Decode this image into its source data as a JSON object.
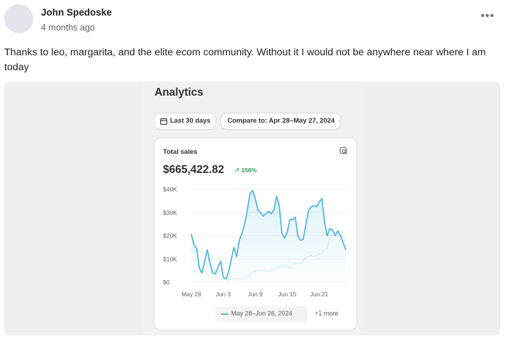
{
  "post": {
    "author": "John Spedoske",
    "timestamp": "4 months ago",
    "more_icon": "ellipsis-icon",
    "text": "Thanks to leo, margarita, and the elite ecom community. Without it I would not be anywhere near where I am today"
  },
  "analytics": {
    "title": "Analytics",
    "period_label": "Last 30 days",
    "compare_label": "Compare to: Apr 28–May 27, 2024",
    "card": {
      "title": "Total sales",
      "total": "$665,422.82",
      "change": "↗ 156%",
      "change_color": "#2f9a56"
    },
    "legend": {
      "label": "May 28–Jun 26, 2024",
      "more": "+1 more",
      "color": "#4ab5d9"
    }
  },
  "chart_data": {
    "type": "line",
    "title": "Total sales",
    "xlabel": "",
    "ylabel": "",
    "ylim": [
      0,
      40000
    ],
    "yticks": [
      0,
      10000,
      20000,
      30000,
      40000
    ],
    "ytick_labels": [
      "$0",
      "$10K",
      "$20K",
      "$30K",
      "$40K"
    ],
    "xtick_labels": [
      "May 28",
      "Jun 3",
      "Jun 9",
      "Jun 15",
      "Jun 21"
    ],
    "xtick_days": [
      0,
      6,
      12,
      18,
      24
    ],
    "grid": true,
    "series": [
      {
        "name": "May 28–Jun 26, 2024",
        "style": "solid",
        "color": "#4ab5d9",
        "x": [
          0,
          0.5,
          1,
          1.5,
          2,
          2.5,
          3,
          3.5,
          4,
          4.5,
          5,
          5.5,
          6,
          6.5,
          7,
          7.5,
          8,
          8.5,
          9,
          9.5,
          10,
          10.5,
          11,
          11.5,
          12,
          12.5,
          13,
          13.5,
          14,
          14.5,
          15,
          15.5,
          16,
          16.5,
          17,
          17.5,
          18,
          18.5,
          19,
          19.5,
          20,
          20.5,
          21,
          21.5,
          22,
          22.5,
          23,
          23.5,
          24,
          24.5,
          25,
          25.5,
          26,
          26.5,
          27,
          27.5,
          28,
          28.5,
          29
        ],
        "y": [
          20500,
          16000,
          14500,
          6000,
          4000,
          9000,
          14000,
          8000,
          4000,
          3500,
          6500,
          9000,
          2000,
          1500,
          4500,
          10000,
          15000,
          11000,
          18000,
          21000,
          25000,
          31000,
          38000,
          39500,
          36000,
          31000,
          30000,
          28500,
          29500,
          30500,
          29500,
          31000,
          37000,
          33000,
          21000,
          19000,
          21500,
          27000,
          27000,
          28000,
          20000,
          18000,
          18500,
          25000,
          31000,
          32500,
          33000,
          32500,
          34500,
          36000,
          26000,
          20000,
          23000,
          22500,
          20000,
          22000,
          20000,
          17000,
          14000
        ]
      },
      {
        "name": "Apr 28–May 27, 2024",
        "style": "dotted",
        "color": "#9fd7ea",
        "x": [
          0,
          0.5,
          1,
          1.5,
          2,
          2.5,
          3,
          3.5,
          4,
          4.5,
          5,
          5.5,
          6,
          6.5,
          7,
          7.5,
          8,
          8.5,
          9,
          9.5,
          10,
          10.5,
          11,
          11.5,
          12,
          12.5,
          13,
          13.5,
          14,
          14.5,
          15,
          15.5,
          16,
          16.5,
          17,
          17.5,
          18,
          18.5,
          19,
          19.5,
          20,
          20.5,
          21,
          21.5,
          22,
          22.5,
          23,
          23.5,
          24,
          24.5,
          25,
          25.5,
          26,
          26.5,
          27,
          27.5,
          28,
          28.5,
          29
        ],
        "y": [
          14000,
          12500,
          14000,
          13000,
          13500,
          12000,
          12500,
          11500,
          7000,
          3500,
          2000,
          1000,
          1500,
          1000,
          1000,
          1200,
          1500,
          1500,
          1300,
          1500,
          1800,
          2200,
          2800,
          4500,
          4800,
          5000,
          5000,
          5200,
          4800,
          4500,
          5000,
          6000,
          5500,
          6500,
          7000,
          7500,
          7000,
          6000,
          7500,
          8500,
          8000,
          8000,
          9000,
          10500,
          11000,
          11500,
          11000,
          11500,
          12000,
          12500,
          14000,
          14500,
          19000,
          21000,
          21500,
          22000,
          20000,
          19500,
          17000
        ]
      }
    ]
  }
}
